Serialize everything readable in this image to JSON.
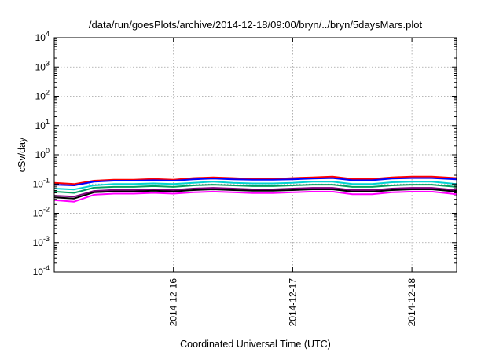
{
  "chart_data": {
    "type": "line",
    "title": "/data/run/goesPlots/archive/2014-12-18/09:00/bryn/../bryn/5daysMars.plot",
    "xlabel": "Coordinated Universal Time (UTC)",
    "ylabel": "cSv/day",
    "yscale": "log",
    "ylim": [
      0.0001,
      10000
    ],
    "y_ticks": [
      {
        "base": "10",
        "exp": "-4",
        "value": 0.0001
      },
      {
        "base": "10",
        "exp": "-3",
        "value": 0.001
      },
      {
        "base": "10",
        "exp": "-2",
        "value": 0.01
      },
      {
        "base": "10",
        "exp": "-1",
        "value": 0.1
      },
      {
        "base": "10",
        "exp": "0",
        "value": 1
      },
      {
        "base": "10",
        "exp": "1",
        "value": 10
      },
      {
        "base": "10",
        "exp": "2",
        "value": 100
      },
      {
        "base": "10",
        "exp": "3",
        "value": 1000
      },
      {
        "base": "10",
        "exp": "4",
        "value": 10000
      }
    ],
    "xlim": [
      "2014-12-15 00:00",
      "2014-12-18 09:00"
    ],
    "x_ticks": [
      "2014-12-16",
      "2014-12-17",
      "2014-12-18"
    ],
    "grid": true,
    "x": [
      "2014-12-15 00:00",
      "2014-12-15 04:00",
      "2014-12-15 08:00",
      "2014-12-15 12:00",
      "2014-12-15 16:00",
      "2014-12-15 20:00",
      "2014-12-16 00:00",
      "2014-12-16 04:00",
      "2014-12-16 08:00",
      "2014-12-16 12:00",
      "2014-12-16 16:00",
      "2014-12-16 20:00",
      "2014-12-17 00:00",
      "2014-12-17 04:00",
      "2014-12-17 08:00",
      "2014-12-17 12:00",
      "2014-12-17 16:00",
      "2014-12-17 20:00",
      "2014-12-18 00:00",
      "2014-12-18 04:00",
      "2014-12-18 09:00"
    ],
    "series": [
      {
        "color": "#ff0000",
        "values": [
          0.11,
          0.1,
          0.13,
          0.14,
          0.14,
          0.15,
          0.14,
          0.16,
          0.17,
          0.16,
          0.15,
          0.15,
          0.16,
          0.17,
          0.18,
          0.15,
          0.15,
          0.17,
          0.18,
          0.18,
          0.16
        ]
      },
      {
        "color": "#0000ff",
        "values": [
          0.095,
          0.09,
          0.12,
          0.13,
          0.13,
          0.135,
          0.13,
          0.145,
          0.155,
          0.145,
          0.14,
          0.14,
          0.145,
          0.155,
          0.16,
          0.135,
          0.135,
          0.155,
          0.16,
          0.16,
          0.145
        ]
      },
      {
        "color": "#00d2d2",
        "values": [
          0.07,
          0.065,
          0.09,
          0.1,
          0.1,
          0.105,
          0.1,
          0.11,
          0.12,
          0.11,
          0.105,
          0.105,
          0.11,
          0.12,
          0.12,
          0.1,
          0.1,
          0.115,
          0.12,
          0.12,
          0.1
        ]
      },
      {
        "color": "#00a060",
        "values": [
          0.055,
          0.05,
          0.075,
          0.08,
          0.08,
          0.085,
          0.08,
          0.09,
          0.095,
          0.09,
          0.085,
          0.085,
          0.09,
          0.095,
          0.095,
          0.08,
          0.08,
          0.09,
          0.095,
          0.095,
          0.08
        ]
      },
      {
        "color": "#7f007f",
        "values": [
          0.04,
          0.037,
          0.058,
          0.063,
          0.063,
          0.066,
          0.063,
          0.07,
          0.074,
          0.07,
          0.066,
          0.066,
          0.07,
          0.074,
          0.074,
          0.062,
          0.062,
          0.07,
          0.074,
          0.074,
          0.062
        ]
      },
      {
        "color": "#000000",
        "values": [
          0.035,
          0.032,
          0.052,
          0.056,
          0.056,
          0.059,
          0.056,
          0.062,
          0.066,
          0.062,
          0.059,
          0.059,
          0.062,
          0.066,
          0.066,
          0.055,
          0.055,
          0.062,
          0.066,
          0.066,
          0.055
        ]
      },
      {
        "color": "#ff00ff",
        "values": [
          0.028,
          0.025,
          0.043,
          0.047,
          0.047,
          0.05,
          0.047,
          0.052,
          0.055,
          0.052,
          0.049,
          0.049,
          0.052,
          0.055,
          0.055,
          0.045,
          0.045,
          0.052,
          0.055,
          0.055,
          0.045
        ]
      }
    ]
  }
}
